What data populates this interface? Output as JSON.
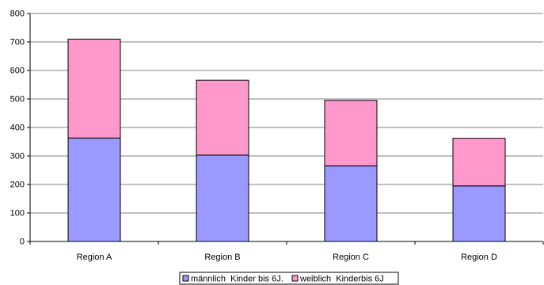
{
  "chart_data": {
    "type": "bar",
    "stacked": true,
    "categories": [
      "Region A",
      "Region B",
      "Region C",
      "Region D"
    ],
    "series": [
      {
        "name": "männlich  Kinder bis 6J.",
        "values": [
          363,
          303,
          265,
          195
        ],
        "color": "#9999ff"
      },
      {
        "name": "weiblich  Kinderbis 6J",
        "values": [
          347,
          263,
          230,
          167
        ],
        "color": "#ff99cc"
      }
    ],
    "ylim": [
      0,
      800
    ],
    "yticks": [
      "0",
      "100",
      "200",
      "300",
      "400",
      "500",
      "600",
      "700",
      "800"
    ],
    "grid": true,
    "legend_position": "bottom"
  }
}
